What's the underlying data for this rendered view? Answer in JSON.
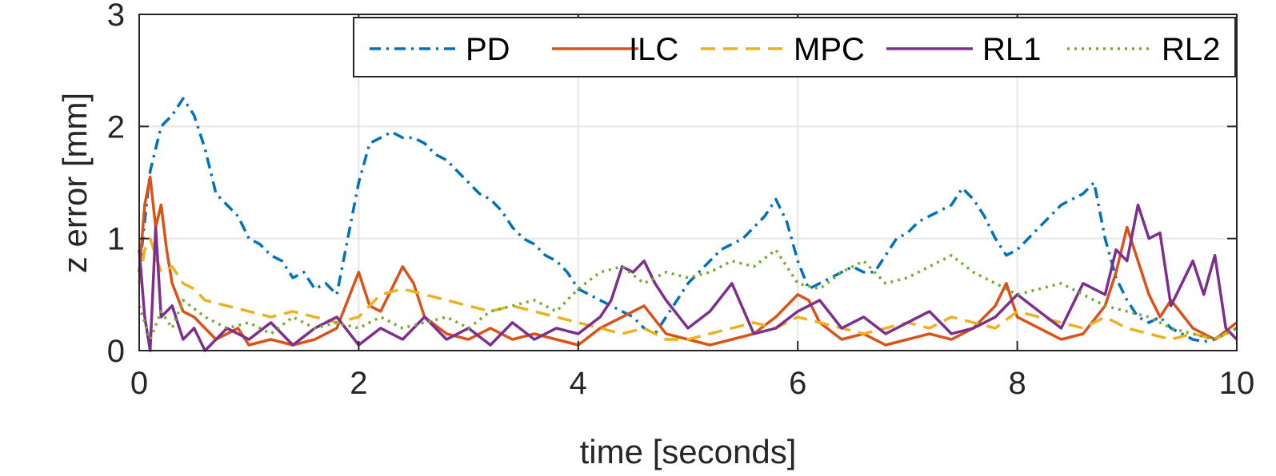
{
  "chart_data": {
    "type": "line",
    "title": "",
    "xlabel": "time [seconds]",
    "ylabel": "z error [mm]",
    "xlim": [
      0,
      10
    ],
    "ylim": [
      0,
      3
    ],
    "xticks": [
      "0",
      "2",
      "4",
      "6",
      "8",
      "10"
    ],
    "yticks": [
      "0",
      "1",
      "2",
      "3"
    ],
    "grid": true,
    "legend_position": "top-right",
    "legend_orientation": "horizontal",
    "series": [
      {
        "name": "PD",
        "color": "#0072BD",
        "dash": "dash-dot",
        "x": [
          0,
          0.1,
          0.2,
          0.3,
          0.4,
          0.5,
          0.6,
          0.7,
          0.8,
          0.9,
          1.0,
          1.1,
          1.2,
          1.3,
          1.4,
          1.5,
          1.6,
          1.7,
          1.8,
          1.9,
          2.0,
          2.1,
          2.2,
          2.3,
          2.4,
          2.5,
          2.6,
          2.7,
          2.8,
          2.9,
          3.0,
          3.1,
          3.2,
          3.3,
          3.4,
          3.5,
          3.6,
          3.7,
          3.8,
          3.9,
          4.0,
          4.1,
          4.2,
          4.3,
          4.4,
          4.5,
          4.6,
          4.7,
          4.8,
          4.9,
          5.0,
          5.1,
          5.2,
          5.3,
          5.4,
          5.5,
          5.6,
          5.7,
          5.8,
          5.9,
          6.0,
          6.1,
          6.2,
          6.3,
          6.4,
          6.5,
          6.6,
          6.7,
          6.8,
          6.9,
          7.0,
          7.1,
          7.2,
          7.3,
          7.4,
          7.5,
          7.6,
          7.7,
          7.8,
          7.9,
          8.0,
          8.1,
          8.2,
          8.3,
          8.4,
          8.5,
          8.6,
          8.7,
          8.8,
          8.9,
          9.0,
          9.1,
          9.2,
          9.3,
          9.4,
          9.5,
          9.6,
          9.7,
          9.8,
          9.9,
          10.0
        ],
        "values": [
          0.7,
          1.6,
          2.0,
          2.1,
          2.25,
          2.1,
          1.8,
          1.4,
          1.3,
          1.2,
          1.0,
          0.95,
          0.85,
          0.8,
          0.65,
          0.7,
          0.55,
          0.6,
          0.5,
          1.0,
          1.5,
          1.85,
          1.9,
          1.95,
          1.9,
          1.9,
          1.85,
          1.75,
          1.7,
          1.6,
          1.5,
          1.4,
          1.35,
          1.25,
          1.1,
          1.0,
          0.95,
          0.85,
          0.8,
          0.7,
          0.55,
          0.5,
          0.45,
          0.4,
          0.35,
          0.3,
          0.2,
          0.15,
          0.3,
          0.45,
          0.6,
          0.7,
          0.8,
          0.9,
          0.95,
          1.0,
          1.1,
          1.2,
          1.35,
          1.15,
          0.8,
          0.55,
          0.6,
          0.65,
          0.7,
          0.75,
          0.7,
          0.7,
          0.85,
          1.0,
          1.05,
          1.15,
          1.2,
          1.25,
          1.3,
          1.45,
          1.35,
          1.2,
          1.0,
          0.85,
          0.9,
          1.0,
          1.1,
          1.2,
          1.3,
          1.35,
          1.4,
          1.5,
          1.0,
          0.65,
          0.45,
          0.3,
          0.25,
          0.3,
          0.2,
          0.15,
          0.1,
          0.08,
          0.1,
          0.15,
          0.2
        ]
      },
      {
        "name": "ILC",
        "color": "#D95319",
        "dash": "solid",
        "x": [
          0,
          0.05,
          0.1,
          0.15,
          0.2,
          0.25,
          0.3,
          0.4,
          0.5,
          0.6,
          0.7,
          0.8,
          0.9,
          1.0,
          1.2,
          1.4,
          1.6,
          1.8,
          1.9,
          2.0,
          2.1,
          2.2,
          2.3,
          2.4,
          2.5,
          2.6,
          2.8,
          3.0,
          3.2,
          3.4,
          3.6,
          3.8,
          4.0,
          4.2,
          4.4,
          4.6,
          4.8,
          5.0,
          5.2,
          5.4,
          5.6,
          5.8,
          6.0,
          6.1,
          6.2,
          6.4,
          6.6,
          6.8,
          7.0,
          7.2,
          7.4,
          7.6,
          7.8,
          7.9,
          8.0,
          8.2,
          8.4,
          8.6,
          8.8,
          8.9,
          9.0,
          9.1,
          9.2,
          9.3,
          9.4,
          9.6,
          9.8,
          10.0
        ],
        "values": [
          0.7,
          1.3,
          1.55,
          1.1,
          1.3,
          0.9,
          0.6,
          0.35,
          0.3,
          0.2,
          0.1,
          0.15,
          0.2,
          0.05,
          0.1,
          0.05,
          0.1,
          0.2,
          0.45,
          0.7,
          0.4,
          0.35,
          0.55,
          0.75,
          0.6,
          0.3,
          0.15,
          0.1,
          0.2,
          0.1,
          0.15,
          0.1,
          0.05,
          0.2,
          0.3,
          0.4,
          0.15,
          0.1,
          0.05,
          0.1,
          0.15,
          0.3,
          0.5,
          0.45,
          0.25,
          0.1,
          0.15,
          0.05,
          0.1,
          0.15,
          0.1,
          0.2,
          0.4,
          0.6,
          0.3,
          0.2,
          0.1,
          0.15,
          0.4,
          0.7,
          1.1,
          0.8,
          0.5,
          0.3,
          0.45,
          0.2,
          0.1,
          0.25
        ]
      },
      {
        "name": "MPC",
        "color": "#EDB120",
        "dash": "dashed",
        "x": [
          0,
          0.05,
          0.1,
          0.2,
          0.3,
          0.4,
          0.5,
          0.6,
          0.8,
          1.0,
          1.2,
          1.4,
          1.6,
          1.8,
          2.0,
          2.2,
          2.4,
          2.6,
          2.8,
          3.0,
          3.2,
          3.4,
          3.6,
          3.8,
          4.0,
          4.2,
          4.4,
          4.6,
          4.8,
          5.0,
          5.2,
          5.4,
          5.6,
          5.8,
          6.0,
          6.2,
          6.4,
          6.6,
          6.8,
          7.0,
          7.2,
          7.4,
          7.6,
          7.8,
          8.0,
          8.2,
          8.4,
          8.6,
          8.8,
          9.0,
          9.2,
          9.4,
          9.6,
          9.8,
          10.0
        ],
        "values": [
          0.6,
          0.9,
          1.0,
          0.7,
          0.75,
          0.6,
          0.55,
          0.45,
          0.4,
          0.35,
          0.3,
          0.35,
          0.3,
          0.25,
          0.3,
          0.5,
          0.55,
          0.5,
          0.45,
          0.4,
          0.35,
          0.4,
          0.35,
          0.3,
          0.25,
          0.2,
          0.15,
          0.2,
          0.1,
          0.1,
          0.15,
          0.2,
          0.25,
          0.2,
          0.3,
          0.25,
          0.2,
          0.15,
          0.2,
          0.25,
          0.2,
          0.3,
          0.25,
          0.2,
          0.35,
          0.3,
          0.25,
          0.2,
          0.3,
          0.2,
          0.15,
          0.1,
          0.15,
          0.1,
          0.2
        ]
      },
      {
        "name": "RL1",
        "color": "#7E2F8E",
        "dash": "solid",
        "x": [
          0,
          0.05,
          0.1,
          0.15,
          0.2,
          0.3,
          0.4,
          0.5,
          0.6,
          0.8,
          1.0,
          1.2,
          1.4,
          1.6,
          1.8,
          2.0,
          2.2,
          2.4,
          2.6,
          2.8,
          3.0,
          3.2,
          3.4,
          3.6,
          3.8,
          4.0,
          4.2,
          4.3,
          4.4,
          4.5,
          4.6,
          4.7,
          4.8,
          5.0,
          5.2,
          5.4,
          5.6,
          5.8,
          6.0,
          6.2,
          6.4,
          6.6,
          6.8,
          7.0,
          7.2,
          7.4,
          7.6,
          7.8,
          8.0,
          8.2,
          8.4,
          8.6,
          8.8,
          8.9,
          9.0,
          9.1,
          9.2,
          9.3,
          9.4,
          9.5,
          9.6,
          9.7,
          9.8,
          9.9,
          10.0
        ],
        "values": [
          0.9,
          0.3,
          0.0,
          1.1,
          0.3,
          0.4,
          0.1,
          0.2,
          0.0,
          0.2,
          0.1,
          0.25,
          0.05,
          0.2,
          0.3,
          0.05,
          0.2,
          0.1,
          0.3,
          0.1,
          0.2,
          0.05,
          0.25,
          0.1,
          0.2,
          0.15,
          0.3,
          0.45,
          0.75,
          0.7,
          0.8,
          0.6,
          0.45,
          0.2,
          0.35,
          0.6,
          0.15,
          0.2,
          0.35,
          0.45,
          0.2,
          0.3,
          0.15,
          0.25,
          0.35,
          0.15,
          0.2,
          0.3,
          0.5,
          0.35,
          0.2,
          0.6,
          0.5,
          0.9,
          0.8,
          1.3,
          1.0,
          1.05,
          0.4,
          0.6,
          0.8,
          0.5,
          0.85,
          0.2,
          0.1
        ]
      },
      {
        "name": "RL2",
        "color": "#77AC30",
        "dash": "dotted",
        "x": [
          0,
          0.1,
          0.2,
          0.3,
          0.4,
          0.6,
          0.8,
          1.0,
          1.2,
          1.4,
          1.6,
          1.8,
          2.0,
          2.2,
          2.4,
          2.6,
          2.8,
          3.0,
          3.2,
          3.4,
          3.6,
          3.8,
          4.0,
          4.2,
          4.4,
          4.6,
          4.8,
          5.0,
          5.2,
          5.4,
          5.6,
          5.8,
          6.0,
          6.2,
          6.4,
          6.6,
          6.8,
          7.0,
          7.2,
          7.4,
          7.6,
          7.8,
          8.0,
          8.2,
          8.4,
          8.6,
          8.8,
          9.0,
          9.2,
          9.4,
          9.6,
          9.8,
          10.0
        ],
        "values": [
          0.4,
          0.1,
          0.35,
          0.2,
          0.45,
          0.3,
          0.2,
          0.25,
          0.15,
          0.3,
          0.2,
          0.25,
          0.2,
          0.3,
          0.2,
          0.25,
          0.3,
          0.2,
          0.35,
          0.4,
          0.45,
          0.35,
          0.55,
          0.7,
          0.75,
          0.6,
          0.7,
          0.65,
          0.7,
          0.8,
          0.75,
          0.9,
          0.6,
          0.55,
          0.7,
          0.8,
          0.6,
          0.65,
          0.75,
          0.85,
          0.7,
          0.6,
          0.5,
          0.55,
          0.6,
          0.5,
          0.4,
          0.35,
          0.3,
          0.2,
          0.15,
          0.1,
          0.2
        ]
      }
    ]
  }
}
